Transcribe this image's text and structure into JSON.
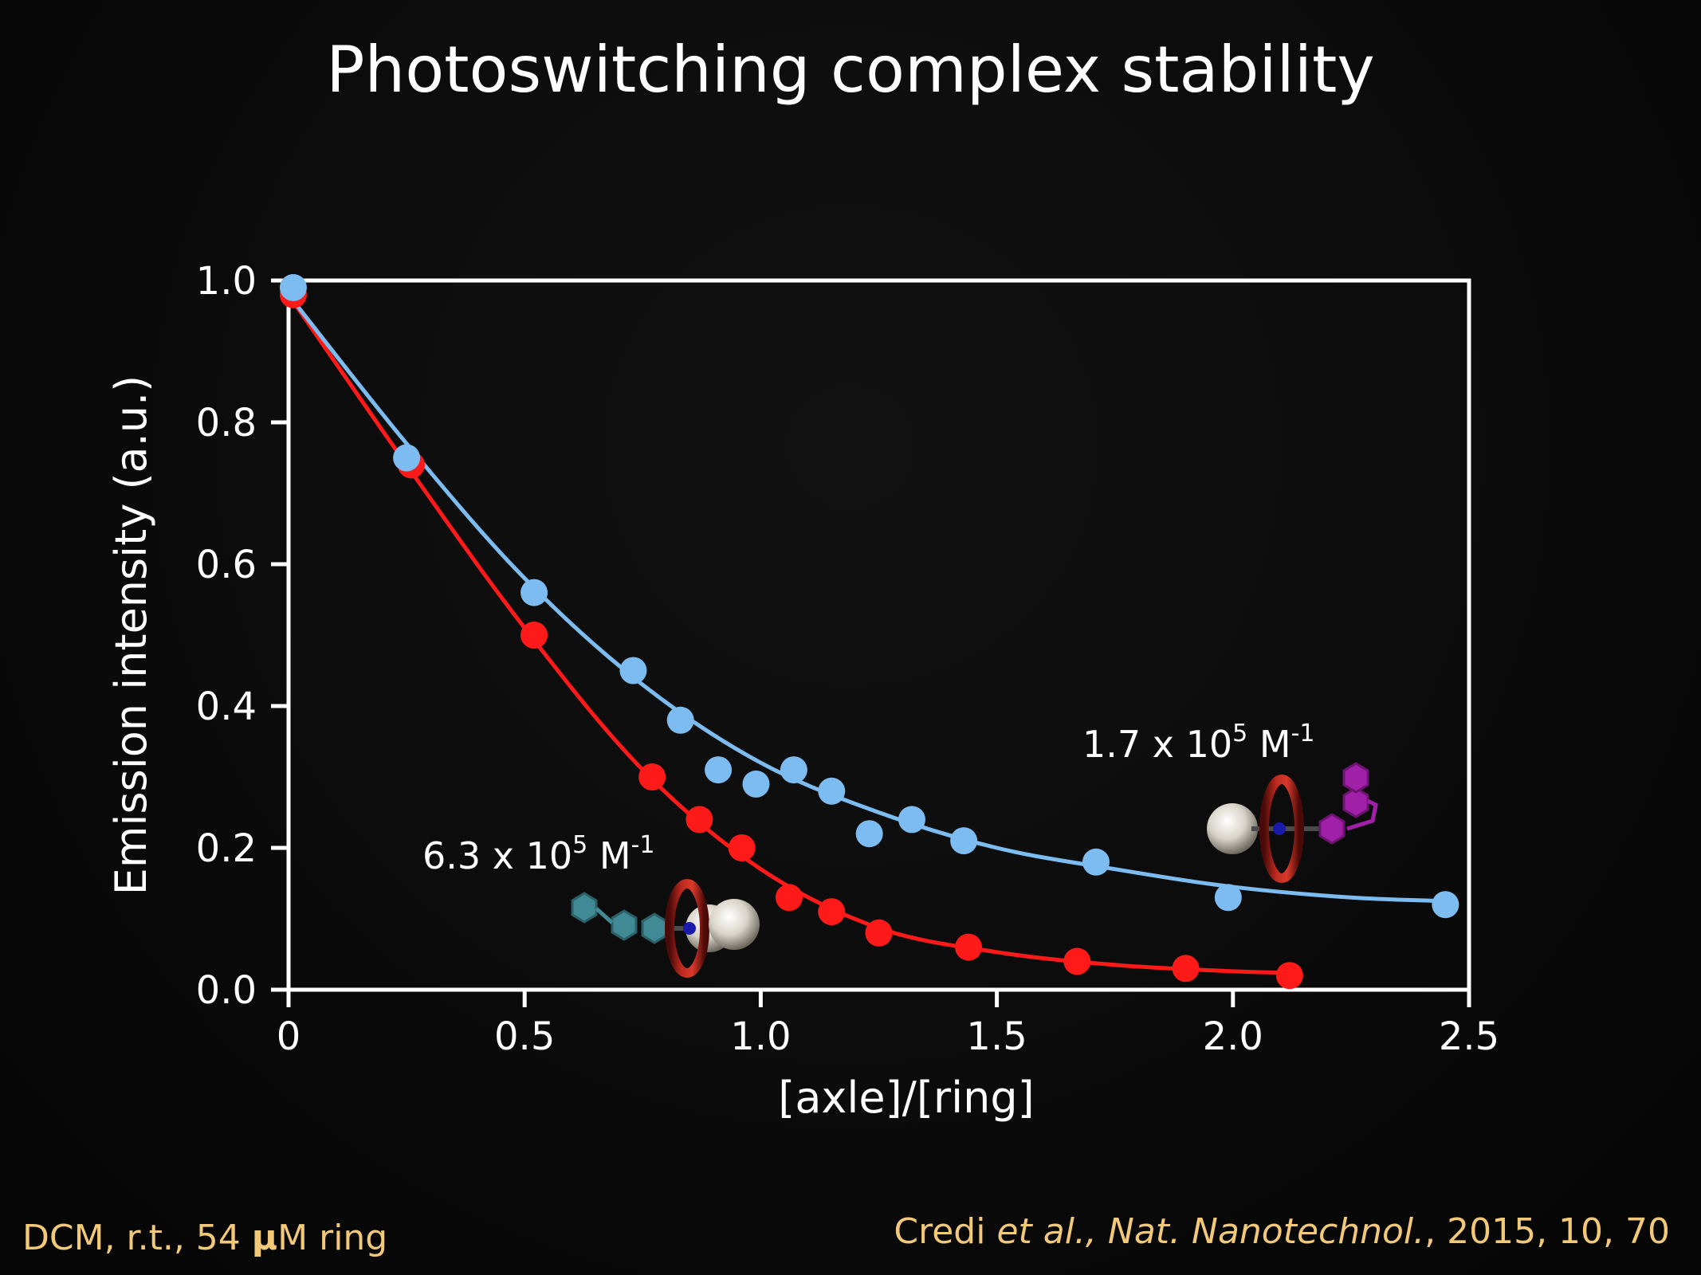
{
  "title": "Photoswitching complex stability",
  "footer": {
    "conditions_prefix": "DCM, r.t., 54 ",
    "conditions_unit_mu": "µ",
    "conditions_suffix": "M ring",
    "citation_author": "Credi ",
    "citation_etal": "et al., ",
    "citation_journal": "Nat. Nanotechnol.",
    "citation_rest": ", 2015, 10, 70"
  },
  "annotations": {
    "red_binding": {
      "base": "6.3 x 10",
      "exp": "5",
      "unit": " M",
      "unit_exp": "-1"
    },
    "blue_binding": {
      "base": "1.7 x 10",
      "exp": "5",
      "unit": " M",
      "unit_exp": "-1"
    }
  },
  "colors": {
    "red_series": "#ff1a1a",
    "blue_series": "#7dbcf0",
    "footer_text": "#f2c879"
  },
  "chart_data": {
    "type": "scatter",
    "xlabel": "[axle]/[ring]",
    "ylabel": "Emission intensity (a.u.)",
    "xlim": [
      0,
      2.5
    ],
    "ylim": [
      0,
      1.0
    ],
    "xticks": [
      "0",
      "0.5",
      "1.0",
      "1.5",
      "2.0",
      "2.5"
    ],
    "yticks": [
      "0.0",
      "0.2",
      "0.4",
      "0.6",
      "0.8",
      "1.0"
    ],
    "grid": false,
    "series": [
      {
        "color": "#ff1a1a",
        "x": [
          0.01,
          0.26,
          0.52,
          0.77,
          0.87,
          0.96,
          1.06,
          1.15,
          1.25,
          1.44,
          1.67,
          1.9,
          2.12
        ],
        "y": [
          0.98,
          0.74,
          0.5,
          0.3,
          0.24,
          0.2,
          0.13,
          0.11,
          0.08,
          0.06,
          0.04,
          0.03,
          0.02
        ],
        "fit_x": [
          0.0,
          0.25,
          0.5,
          0.75,
          1.0,
          1.25,
          1.5,
          1.75,
          2.0,
          2.12
        ],
        "fit_y": [
          0.98,
          0.74,
          0.51,
          0.31,
          0.17,
          0.087,
          0.053,
          0.035,
          0.026,
          0.024
        ]
      },
      {
        "color": "#7dbcf0",
        "x": [
          0.01,
          0.25,
          0.52,
          0.73,
          0.83,
          0.91,
          0.99,
          1.07,
          1.15,
          1.23,
          1.32,
          1.43,
          1.71,
          1.99,
          2.45
        ],
        "y": [
          0.99,
          0.75,
          0.56,
          0.45,
          0.38,
          0.31,
          0.29,
          0.31,
          0.28,
          0.22,
          0.24,
          0.21,
          0.18,
          0.13,
          0.12
        ],
        "fit_x": [
          0.0,
          0.25,
          0.5,
          0.75,
          1.0,
          1.25,
          1.5,
          1.75,
          2.0,
          2.25,
          2.45
        ],
        "fit_y": [
          0.98,
          0.77,
          0.58,
          0.43,
          0.32,
          0.25,
          0.2,
          0.17,
          0.145,
          0.13,
          0.125
        ]
      }
    ]
  }
}
